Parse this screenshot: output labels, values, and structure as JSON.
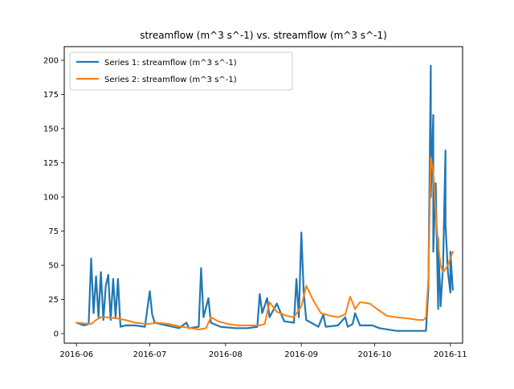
{
  "chart_data": {
    "type": "line",
    "title": "streamflow (m^3 s^-1) vs. streamflow (m^3 s^-1)",
    "xlabel": "",
    "ylabel": "",
    "x_axis_type": "date",
    "xlim": [
      "2016-05-27",
      "2016-11-06"
    ],
    "ylim": [
      -7,
      210
    ],
    "xticks": [
      {
        "date": "2016-06-01",
        "label": "2016-06"
      },
      {
        "date": "2016-07-01",
        "label": "2016-07"
      },
      {
        "date": "2016-08-01",
        "label": "2016-08"
      },
      {
        "date": "2016-09-01",
        "label": "2016-09"
      },
      {
        "date": "2016-10-01",
        "label": "2016-10"
      },
      {
        "date": "2016-11-01",
        "label": "2016-11"
      }
    ],
    "yticks": [
      0,
      25,
      50,
      75,
      100,
      125,
      150,
      175,
      200
    ],
    "grid": false,
    "legend": "upper-left",
    "series": [
      {
        "name": "Series 1: streamflow (m^3 s^-1)",
        "color": "#1f77b4",
        "points": [
          [
            "2016-06-01",
            8
          ],
          [
            "2016-06-04",
            6
          ],
          [
            "2016-06-06",
            7
          ],
          [
            "2016-06-07",
            55
          ],
          [
            "2016-06-08",
            15
          ],
          [
            "2016-06-09",
            42
          ],
          [
            "2016-06-10",
            12
          ],
          [
            "2016-06-11",
            45
          ],
          [
            "2016-06-12",
            10
          ],
          [
            "2016-06-13",
            35
          ],
          [
            "2016-06-14",
            43
          ],
          [
            "2016-06-15",
            10
          ],
          [
            "2016-06-16",
            40
          ],
          [
            "2016-06-17",
            12
          ],
          [
            "2016-06-18",
            40
          ],
          [
            "2016-06-19",
            5
          ],
          [
            "2016-06-21",
            6
          ],
          [
            "2016-06-25",
            6
          ],
          [
            "2016-06-29",
            5
          ],
          [
            "2016-07-01",
            31
          ],
          [
            "2016-07-02",
            14
          ],
          [
            "2016-07-03",
            8
          ],
          [
            "2016-07-08",
            6
          ],
          [
            "2016-07-13",
            4
          ],
          [
            "2016-07-16",
            8
          ],
          [
            "2016-07-17",
            4
          ],
          [
            "2016-07-21",
            5
          ],
          [
            "2016-07-22",
            48
          ],
          [
            "2016-07-23",
            12
          ],
          [
            "2016-07-25",
            26
          ],
          [
            "2016-07-26",
            8
          ],
          [
            "2016-07-30",
            5
          ],
          [
            "2016-08-05",
            4
          ],
          [
            "2016-08-10",
            4
          ],
          [
            "2016-08-14",
            5
          ],
          [
            "2016-08-15",
            29
          ],
          [
            "2016-08-16",
            15
          ],
          [
            "2016-08-18",
            26
          ],
          [
            "2016-08-19",
            12
          ],
          [
            "2016-08-22",
            22
          ],
          [
            "2016-08-25",
            9
          ],
          [
            "2016-08-29",
            8
          ],
          [
            "2016-08-30",
            40
          ],
          [
            "2016-08-31",
            12
          ],
          [
            "2016-09-01",
            74
          ],
          [
            "2016-09-02",
            30
          ],
          [
            "2016-09-03",
            10
          ],
          [
            "2016-09-08",
            5
          ],
          [
            "2016-09-10",
            14
          ],
          [
            "2016-09-11",
            5
          ],
          [
            "2016-09-16",
            6
          ],
          [
            "2016-09-19",
            12
          ],
          [
            "2016-09-20",
            5
          ],
          [
            "2016-09-22",
            7
          ],
          [
            "2016-09-23",
            15
          ],
          [
            "2016-09-25",
            6
          ],
          [
            "2016-09-30",
            6
          ],
          [
            "2016-10-03",
            4
          ],
          [
            "2016-10-10",
            2
          ],
          [
            "2016-10-19",
            2
          ],
          [
            "2016-10-22",
            2
          ],
          [
            "2016-10-23",
            33
          ],
          [
            "2016-10-24",
            196
          ],
          [
            "2016-10-24",
            100
          ],
          [
            "2016-10-25",
            160
          ],
          [
            "2016-10-25",
            60
          ],
          [
            "2016-10-26",
            110
          ],
          [
            "2016-10-27",
            18
          ],
          [
            "2016-10-27",
            70
          ],
          [
            "2016-10-28",
            20
          ],
          [
            "2016-10-29",
            50
          ],
          [
            "2016-10-30",
            134
          ],
          [
            "2016-10-30",
            80
          ],
          [
            "2016-10-31",
            45
          ],
          [
            "2016-11-01",
            30
          ],
          [
            "2016-11-01",
            60
          ],
          [
            "2016-11-02",
            32
          ]
        ]
      },
      {
        "name": "Series 2: streamflow (m^3 s^-1)",
        "color": "#ff7f0e",
        "points": [
          [
            "2016-06-01",
            8
          ],
          [
            "2016-06-07",
            7
          ],
          [
            "2016-06-09",
            10
          ],
          [
            "2016-06-11",
            12
          ],
          [
            "2016-06-14",
            12
          ],
          [
            "2016-06-18",
            11
          ],
          [
            "2016-06-21",
            10
          ],
          [
            "2016-06-25",
            8
          ],
          [
            "2016-06-30",
            7
          ],
          [
            "2016-07-04",
            8
          ],
          [
            "2016-07-09",
            7
          ],
          [
            "2016-07-14",
            5
          ],
          [
            "2016-07-18",
            4
          ],
          [
            "2016-07-21",
            3
          ],
          [
            "2016-07-24",
            4
          ],
          [
            "2016-07-26",
            12
          ],
          [
            "2016-07-29",
            9
          ],
          [
            "2016-08-02",
            7
          ],
          [
            "2016-08-06",
            6
          ],
          [
            "2016-08-10",
            6
          ],
          [
            "2016-08-15",
            6
          ],
          [
            "2016-08-17",
            7
          ],
          [
            "2016-08-19",
            23
          ],
          [
            "2016-08-22",
            16
          ],
          [
            "2016-08-26",
            13
          ],
          [
            "2016-08-29",
            12
          ],
          [
            "2016-09-01",
            20
          ],
          [
            "2016-09-03",
            35
          ],
          [
            "2016-09-06",
            24
          ],
          [
            "2016-09-09",
            15
          ],
          [
            "2016-09-13",
            13
          ],
          [
            "2016-09-16",
            12
          ],
          [
            "2016-09-19",
            14
          ],
          [
            "2016-09-21",
            27
          ],
          [
            "2016-09-23",
            18
          ],
          [
            "2016-09-25",
            23
          ],
          [
            "2016-09-29",
            22
          ],
          [
            "2016-10-02",
            18
          ],
          [
            "2016-10-06",
            13
          ],
          [
            "2016-10-10",
            12
          ],
          [
            "2016-10-15",
            11
          ],
          [
            "2016-10-19",
            10
          ],
          [
            "2016-10-21",
            10
          ],
          [
            "2016-10-22",
            12
          ],
          [
            "2016-10-23",
            40
          ],
          [
            "2016-10-24",
            129
          ],
          [
            "2016-10-25",
            118
          ],
          [
            "2016-10-26",
            90
          ],
          [
            "2016-10-27",
            65
          ],
          [
            "2016-10-28",
            50
          ],
          [
            "2016-10-29",
            45
          ],
          [
            "2016-10-31",
            50
          ],
          [
            "2016-11-02",
            60
          ]
        ]
      }
    ]
  }
}
